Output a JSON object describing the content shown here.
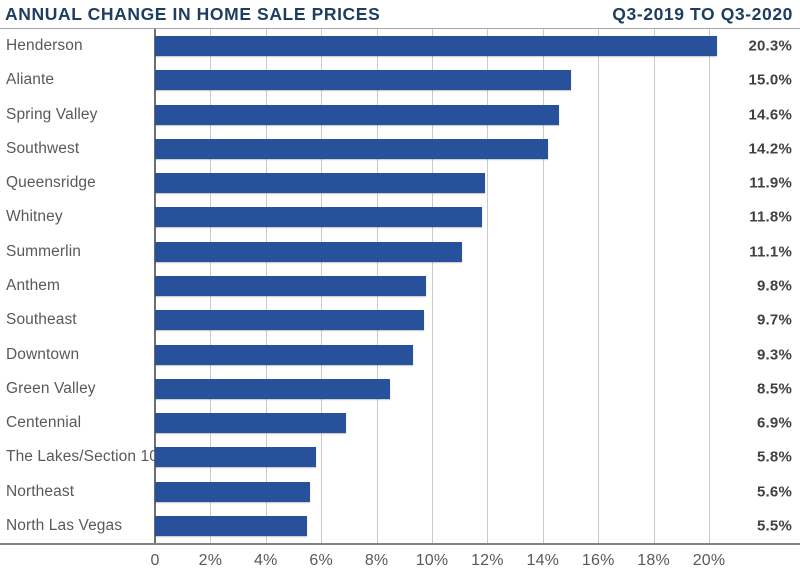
{
  "header": {
    "title_left": "ANNUAL CHANGE IN HOME SALE PRICES",
    "title_right": "Q3-2019 TO Q3-2020"
  },
  "colors": {
    "bar": "#27519B",
    "title": "#1E3D61",
    "category_label": "#58595B",
    "value_label": "#414042",
    "gridline": "#C9CACB",
    "zero_line": "#6D6E71",
    "axis_line": "#808285",
    "header_rule": "#A4A6A9"
  },
  "chart_data": {
    "type": "bar",
    "orientation": "horizontal",
    "title": "ANNUAL CHANGE IN HOME SALE PRICES",
    "subtitle": "Q3-2019 TO Q3-2020",
    "categories": [
      "Henderson",
      "Aliante",
      "Spring Valley",
      "Southwest",
      "Queensridge",
      "Whitney",
      "Summerlin",
      "Anthem",
      "Southeast",
      "Downtown",
      "Green Valley",
      "Centennial",
      "The Lakes/Section 10",
      "Northeast",
      "North Las Vegas"
    ],
    "values": [
      20.3,
      15.0,
      14.6,
      14.2,
      11.9,
      11.8,
      11.1,
      9.8,
      9.7,
      9.3,
      8.5,
      6.9,
      5.8,
      5.6,
      5.5
    ],
    "value_labels": [
      "20.3%",
      "15.0%",
      "14.6%",
      "14.2%",
      "11.9%",
      "11.8%",
      "11.1%",
      "9.8%",
      "9.7%",
      "9.3%",
      "8.5%",
      "6.9%",
      "5.8%",
      "5.6%",
      "5.5%"
    ],
    "xlabel": "",
    "ylabel": "",
    "unit": "%",
    "xlim": [
      0,
      22
    ],
    "x_ticks": [
      0,
      2,
      4,
      6,
      8,
      10,
      12,
      14,
      16,
      18,
      20
    ],
    "x_tick_labels": [
      "0",
      "2%",
      "4%",
      "6%",
      "8%",
      "10%",
      "12%",
      "14%",
      "16%",
      "18%",
      "20%"
    ],
    "grid": true,
    "grid_orientation": "vertical",
    "legend": false
  }
}
